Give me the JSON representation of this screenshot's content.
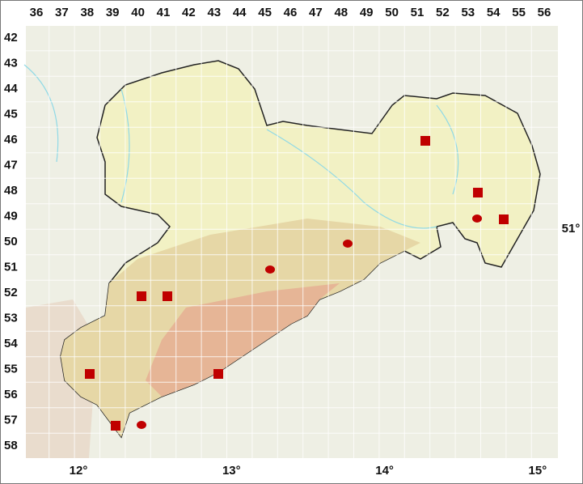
{
  "columns": [
    "36",
    "37",
    "38",
    "39",
    "40",
    "41",
    "42",
    "43",
    "44",
    "45",
    "46",
    "47",
    "48",
    "49",
    "50",
    "51",
    "52",
    "53",
    "54",
    "55",
    "56"
  ],
  "rows": [
    "42",
    "43",
    "44",
    "45",
    "46",
    "47",
    "48",
    "49",
    "50",
    "51",
    "52",
    "53",
    "54",
    "55",
    "56",
    "57",
    "58"
  ],
  "longitudes": [
    "12°",
    "13°",
    "14°",
    "15°"
  ],
  "latitude": "51°"
}
